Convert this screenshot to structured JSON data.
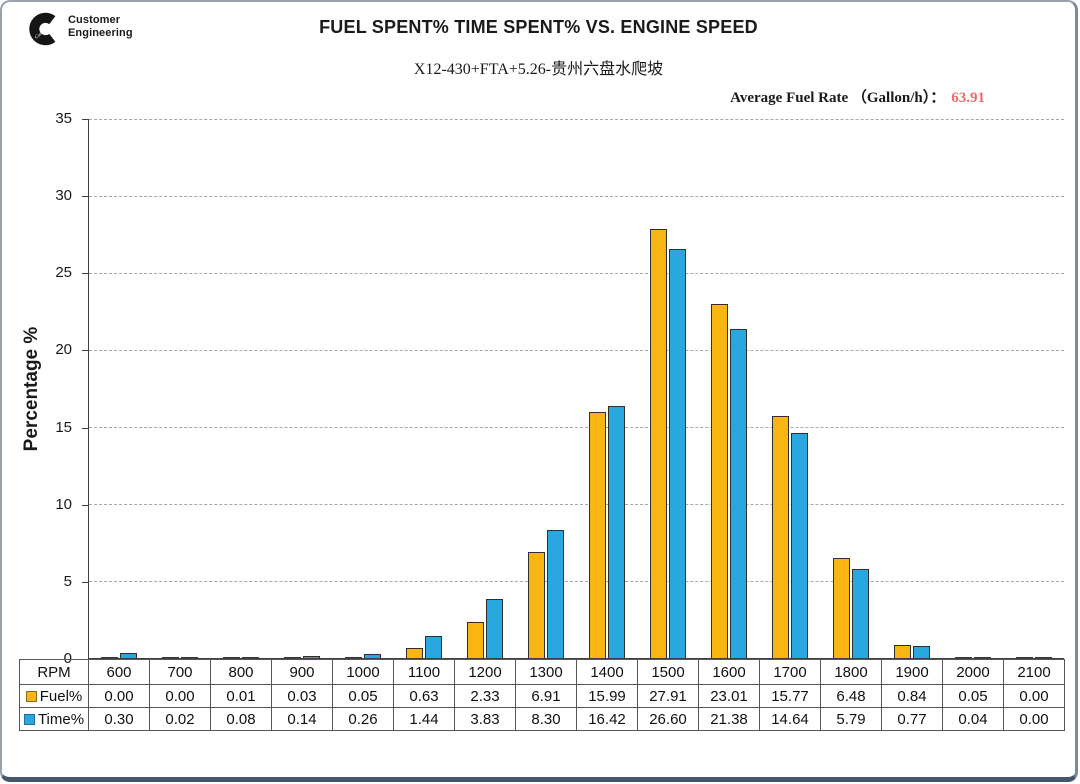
{
  "logo": {
    "brand": "Cummins",
    "line1": "Customer",
    "line2": "Engineering"
  },
  "title": "FUEL SPENT% TIME SPENT% VS. ENGINE SPEED",
  "subtitle": "X12-430+FTA+5.26-贵州六盘水爬坡",
  "avg_fuel_rate": {
    "label": "Average Fuel Rate （Gallon/h）：",
    "value": "63.91",
    "value_color": "#ef6a6a"
  },
  "chart_data": {
    "type": "bar",
    "title": "FUEL SPENT% TIME SPENT% VS. ENGINE SPEED",
    "subtitle": "X12-430+FTA+5.26-贵州六盘水爬坡",
    "categories": [
      "600",
      "700",
      "800",
      "900",
      "1000",
      "1100",
      "1200",
      "1300",
      "1400",
      "1500",
      "1600",
      "1700",
      "1800",
      "1900",
      "2000",
      "2100"
    ],
    "series": [
      {
        "name": "Fuel%",
        "color": "#F9B612",
        "border": "#8c6d1f",
        "values": [
          0.0,
          0.0,
          0.01,
          0.03,
          0.05,
          0.63,
          2.33,
          6.91,
          15.99,
          27.91,
          23.01,
          15.77,
          6.48,
          0.84,
          0.05,
          0.0
        ]
      },
      {
        "name": "Time%",
        "color": "#29A8DF",
        "border": "#1f6f96",
        "values": [
          0.3,
          0.02,
          0.08,
          0.14,
          0.26,
          1.44,
          3.83,
          8.3,
          16.42,
          26.6,
          21.38,
          14.64,
          5.79,
          0.77,
          0.04,
          0.0
        ]
      }
    ],
    "xlabel": "RPM",
    "ylabel": "Percentage %",
    "ylim": [
      0,
      35
    ],
    "yticks": [
      0,
      5,
      10,
      15,
      20,
      25,
      30,
      35
    ],
    "grid": "horizontal-dashed",
    "legend_position": "table-left"
  },
  "table": {
    "corner_label": "RPM",
    "columns": [
      "600",
      "700",
      "800",
      "900",
      "1000",
      "1100",
      "1200",
      "1300",
      "1400",
      "1500",
      "1600",
      "1700",
      "1800",
      "1900",
      "2000",
      "2100"
    ],
    "rows": [
      {
        "label": "Fuel%",
        "color": "#F9B612",
        "border": "#8c6d1f",
        "values": [
          "0.00",
          "0.00",
          "0.01",
          "0.03",
          "0.05",
          "0.63",
          "2.33",
          "6.91",
          "15.99",
          "27.91",
          "23.01",
          "15.77",
          "6.48",
          "0.84",
          "0.05",
          "0.00"
        ]
      },
      {
        "label": "Time%",
        "color": "#29A8DF",
        "border": "#1f6f96",
        "values": [
          "0.30",
          "0.02",
          "0.08",
          "0.14",
          "0.26",
          "1.44",
          "3.83",
          "8.30",
          "16.42",
          "26.60",
          "21.38",
          "14.64",
          "5.79",
          "0.77",
          "0.04",
          "0.00"
        ]
      }
    ]
  }
}
